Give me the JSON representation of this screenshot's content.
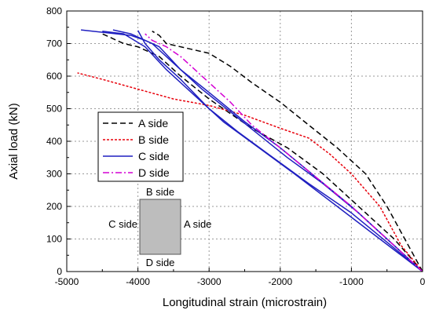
{
  "chart_data": {
    "type": "line",
    "xlabel": "Longitudinal strain (microstrain)",
    "ylabel": "Axial load (kN)",
    "xlim": [
      -5000,
      0
    ],
    "ylim": [
      0,
      800
    ],
    "xticks": [
      -5000,
      -4000,
      -3000,
      -2000,
      -1000,
      0
    ],
    "yticks": [
      0,
      100,
      200,
      300,
      400,
      500,
      600,
      700,
      800
    ],
    "grid": true,
    "legend_position": "middle-left",
    "series": [
      {
        "name": "A side",
        "color": "#000000",
        "dash": "dashed",
        "lines": [
          [
            [
              0,
              0
            ],
            [
              -200,
              80
            ],
            [
              -500,
              200
            ],
            [
              -800,
              300
            ],
            [
              -1200,
              380
            ],
            [
              -1600,
              450
            ],
            [
              -2000,
              520
            ],
            [
              -2400,
              580
            ],
            [
              -2700,
              630
            ],
            [
              -3000,
              670
            ],
            [
              -3300,
              685
            ],
            [
              -3600,
              700
            ],
            [
              -3700,
              725
            ],
            [
              -3800,
              738
            ]
          ],
          [
            [
              0,
              0
            ],
            [
              -400,
              100
            ],
            [
              -900,
              200
            ],
            [
              -1400,
              300
            ],
            [
              -1900,
              380
            ],
            [
              -2400,
              440
            ],
            [
              -3000,
              530
            ],
            [
              -3400,
              600
            ],
            [
              -3700,
              660
            ],
            [
              -4000,
              690
            ],
            [
              -4200,
              700
            ],
            [
              -4500,
              730
            ]
          ]
        ]
      },
      {
        "name": "B side",
        "color": "#e8000b",
        "dash": "dotted",
        "lines": [
          [
            [
              0,
              0
            ],
            [
              -300,
              80
            ],
            [
              -600,
              200
            ],
            [
              -800,
              250
            ],
            [
              -1000,
              300
            ],
            [
              -1300,
              360
            ],
            [
              -1600,
              410
            ],
            [
              -2000,
              440
            ],
            [
              -2500,
              480
            ],
            [
              -3000,
              510
            ],
            [
              -3500,
              530
            ],
            [
              -4000,
              560
            ],
            [
              -4500,
              590
            ],
            [
              -4850,
              610
            ]
          ]
        ]
      },
      {
        "name": "C side",
        "color": "#1f1fc0",
        "dash": "solid",
        "lines": [
          [
            [
              0,
              0
            ],
            [
              -500,
              100
            ],
            [
              -1000,
              200
            ],
            [
              -1500,
              290
            ],
            [
              -2000,
              380
            ],
            [
              -2500,
              460
            ],
            [
              -3000,
              550
            ],
            [
              -3400,
              620
            ],
            [
              -3700,
              690
            ],
            [
              -3900,
              710
            ],
            [
              -4100,
              725
            ],
            [
              -4800,
              742
            ]
          ],
          [
            [
              0,
              0
            ],
            [
              -400,
              80
            ],
            [
              -900,
              180
            ],
            [
              -1400,
              270
            ],
            [
              -1900,
              350
            ],
            [
              -2300,
              420
            ],
            [
              -2700,
              490
            ],
            [
              -3100,
              560
            ],
            [
              -3500,
              640
            ],
            [
              -3800,
              700
            ],
            [
              -4100,
              730
            ],
            [
              -4350,
              742
            ]
          ],
          [
            [
              0,
              0
            ],
            [
              -600,
              100
            ],
            [
              -1200,
              200
            ],
            [
              -1800,
              300
            ],
            [
              -2300,
              380
            ],
            [
              -2800,
              460
            ],
            [
              -3200,
              540
            ],
            [
              -3600,
              620
            ],
            [
              -3900,
              690
            ],
            [
              -4200,
              730
            ],
            [
              -4500,
              738
            ]
          ],
          [
            [
              0,
              0
            ],
            [
              -500,
              90
            ],
            [
              -1000,
              180
            ],
            [
              -1600,
              270
            ],
            [
              -2100,
              350
            ],
            [
              -2600,
              430
            ],
            [
              -3000,
              500
            ],
            [
              -3400,
              590
            ],
            [
              -3700,
              650
            ],
            [
              -3900,
              700
            ],
            [
              -4000,
              740
            ]
          ]
        ]
      },
      {
        "name": "D side",
        "color": "#d400d4",
        "dash": "dashdot",
        "lines": [
          [
            [
              0,
              0
            ],
            [
              -500,
              100
            ],
            [
              -1000,
              200
            ],
            [
              -1500,
              290
            ],
            [
              -2000,
              380
            ],
            [
              -2400,
              450
            ],
            [
              -2700,
              520
            ],
            [
              -3000,
              580
            ],
            [
              -3200,
              620
            ],
            [
              -3400,
              660
            ],
            [
              -3600,
              690
            ],
            [
              -3700,
              700
            ],
            [
              -3800,
              710
            ],
            [
              -3900,
              730
            ]
          ]
        ]
      }
    ],
    "inset": {
      "top_label": "B side",
      "right_label": "A side",
      "bottom_label": "D side",
      "left_label": "C side",
      "fill": "#bdbdbd"
    }
  }
}
